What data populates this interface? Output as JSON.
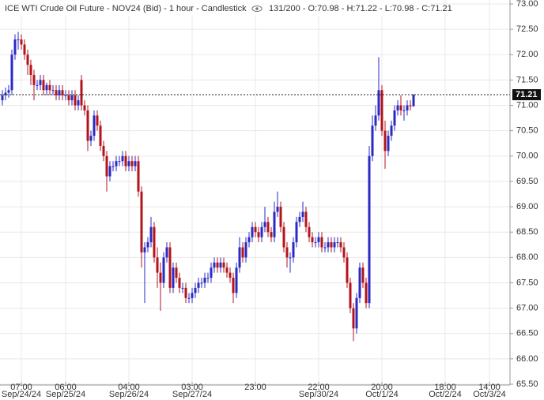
{
  "chart_data": {
    "type": "candlestick",
    "title": "ICE WTI Crude Oil Future - NOV24 (Bid) - 1 hour - Candlestick",
    "info": "131/200 - O:70.98 - H:71.22 - L:70.98 - C:71.21",
    "up_color": "#2a2ac4",
    "down_color": "#b3141c",
    "grid": true,
    "last_price": {
      "value": 71.21,
      "label": "71.21"
    },
    "xlim": [
      -0.75,
      160.5
    ],
    "xticks": [
      {
        "value": 6,
        "label": "07:00",
        "date": "Sep/24/24"
      },
      {
        "value": 20,
        "label": "06:00",
        "date": "Sep/25/24"
      },
      {
        "value": 40,
        "label": "04:00",
        "date": "Sep/26/24"
      },
      {
        "value": 60,
        "label": "03:00",
        "date": "Sep/27/24"
      },
      {
        "value": 80,
        "label": "23:00"
      },
      {
        "value": 100,
        "label": "22:00",
        "date": "Sep/30/24"
      },
      {
        "value": 120,
        "label": "20:00",
        "date": "Oct/1/24"
      },
      {
        "value": 140,
        "label": "18:00",
        "date": "Oct/2/24"
      },
      {
        "value": 154,
        "label": "14:00",
        "date": "Oct/3/24"
      }
    ],
    "ylim": [
      65.5,
      73.0
    ],
    "yticks": [
      {
        "value": 65.5,
        "label": "65.50"
      },
      {
        "value": 66,
        "label": "66.00"
      },
      {
        "value": 66.5,
        "label": "66.50"
      },
      {
        "value": 67,
        "label": "67.00"
      },
      {
        "value": 67.5,
        "label": "67.50"
      },
      {
        "value": 68,
        "label": "68.00"
      },
      {
        "value": 68.5,
        "label": "68.50"
      },
      {
        "value": 69,
        "label": "69.00"
      },
      {
        "value": 69.5,
        "label": "69.50"
      },
      {
        "value": 70,
        "label": "70.00"
      },
      {
        "value": 70.5,
        "label": "70.50"
      },
      {
        "value": 71,
        "label": "71.00"
      },
      {
        "value": 71.5,
        "label": "71.50"
      },
      {
        "value": 72,
        "label": "72.00"
      },
      {
        "value": 72.5,
        "label": "72.50"
      },
      {
        "value": 73,
        "label": "73.00"
      }
    ],
    "open": [
      71.1,
      71.2,
      71.25,
      71.3,
      72.0,
      72.3,
      72.3,
      72.2,
      72.0,
      71.8,
      71.6,
      71.4,
      71.4,
      71.5,
      71.3,
      71.4,
      71.3,
      71.3,
      71.2,
      71.3,
      71.2,
      71.2,
      71.1,
      71.2,
      71.0,
      71.5,
      71.0,
      70.9,
      70.3,
      70.4,
      70.8,
      70.6,
      70.2,
      70.0,
      69.6,
      69.8,
      69.8,
      69.9,
      69.9,
      70.0,
      69.8,
      69.9,
      69.8,
      69.9,
      69.3,
      68.1,
      68.2,
      68.3,
      68.6,
      68.0,
      67.7,
      67.5,
      68.0,
      68.2,
      67.4,
      67.8,
      67.6,
      67.4,
      67.4,
      67.2,
      67.2,
      67.3,
      67.4,
      67.5,
      67.5,
      67.6,
      67.6,
      67.8,
      67.9,
      67.8,
      67.9,
      67.8,
      67.7,
      67.6,
      67.3,
      67.8,
      68.2,
      68.0,
      68.3,
      68.4,
      68.6,
      68.5,
      68.4,
      68.6,
      68.7,
      68.5,
      68.4,
      68.9,
      69.0,
      68.6,
      68.2,
      68.0,
      68.0,
      68.3,
      68.7,
      68.8,
      68.9,
      68.6,
      68.4,
      68.3,
      68.3,
      68.4,
      68.2,
      68.2,
      68.3,
      68.2,
      68.3,
      68.3,
      68.2,
      68.0,
      67.5,
      67.0,
      66.6,
      67.2,
      67.8,
      67.5,
      67.1,
      70.0,
      70.6,
      70.8,
      71.3,
      70.5,
      70.1,
      70.4,
      70.6,
      70.9,
      71.0,
      70.9,
      70.9,
      71.0,
      70.98
    ],
    "high": [
      71.3,
      71.35,
      71.4,
      72.1,
      72.4,
      72.45,
      72.4,
      72.3,
      72.1,
      71.9,
      71.7,
      71.5,
      71.6,
      71.6,
      71.45,
      71.5,
      71.4,
      71.4,
      71.4,
      71.4,
      71.3,
      71.3,
      71.3,
      71.3,
      71.2,
      71.6,
      71.1,
      71.0,
      70.5,
      70.9,
      70.9,
      70.7,
      70.3,
      70.1,
      69.9,
      69.9,
      70.0,
      70.0,
      70.1,
      70.1,
      70.0,
      70.0,
      70.0,
      70.0,
      69.4,
      68.3,
      68.4,
      68.8,
      68.7,
      68.2,
      67.9,
      68.1,
      68.3,
      68.3,
      67.9,
      67.9,
      67.7,
      67.5,
      67.5,
      67.3,
      67.4,
      67.5,
      67.6,
      67.6,
      67.7,
      67.7,
      67.9,
      68.0,
      68.0,
      68.0,
      68.0,
      67.9,
      67.8,
      67.7,
      67.9,
      68.4,
      68.3,
      68.4,
      68.5,
      68.7,
      68.7,
      68.6,
      68.7,
      69.0,
      68.8,
      68.6,
      69.1,
      69.3,
      69.1,
      68.7,
      68.3,
      68.1,
      68.4,
      68.8,
      68.9,
      69.1,
      69.0,
      68.7,
      68.5,
      68.4,
      68.5,
      68.5,
      68.3,
      68.4,
      68.4,
      68.4,
      68.4,
      68.4,
      68.3,
      68.1,
      67.6,
      67.1,
      67.3,
      67.9,
      67.9,
      67.6,
      70.2,
      70.8,
      71.0,
      71.95,
      71.4,
      70.7,
      70.5,
      70.7,
      71.0,
      71.1,
      71.2,
      71.0,
      71.1,
      71.1,
      71.22
    ],
    "low": [
      71.0,
      71.1,
      71.15,
      71.2,
      71.9,
      72.1,
      72.1,
      71.9,
      71.6,
      71.4,
      71.1,
      71.3,
      71.3,
      71.2,
      71.2,
      71.2,
      71.2,
      71.1,
      71.1,
      71.1,
      71.1,
      71.0,
      71.0,
      70.9,
      70.9,
      70.9,
      70.8,
      70.1,
      70.2,
      70.3,
      70.5,
      70.1,
      69.9,
      69.3,
      69.5,
      69.7,
      69.7,
      69.8,
      69.8,
      69.7,
      69.7,
      69.7,
      69.7,
      69.2,
      67.8,
      67.1,
      68.1,
      68.2,
      67.9,
      67.4,
      66.95,
      67.4,
      67.9,
      67.3,
      67.3,
      67.5,
      67.3,
      67.3,
      67.1,
      67.1,
      67.1,
      67.2,
      67.3,
      67.4,
      67.4,
      67.5,
      67.5,
      67.7,
      67.7,
      67.7,
      67.7,
      67.6,
      67.5,
      67.1,
      67.2,
      67.7,
      67.9,
      67.9,
      68.2,
      68.3,
      68.4,
      68.3,
      68.3,
      68.5,
      68.4,
      68.3,
      68.3,
      68.8,
      68.5,
      68.1,
      67.8,
      67.7,
      67.9,
      68.2,
      68.6,
      68.7,
      68.5,
      68.3,
      68.2,
      68.2,
      68.2,
      68.1,
      68.1,
      68.1,
      68.1,
      68.1,
      68.2,
      68.1,
      67.9,
      67.4,
      66.9,
      66.35,
      66.5,
      67.1,
      67.4,
      67.0,
      67.0,
      69.9,
      70.5,
      70.7,
      70.4,
      69.75,
      70.0,
      70.3,
      70.5,
      70.8,
      70.8,
      70.7,
      70.8,
      70.9,
      70.98
    ],
    "close": [
      71.2,
      71.25,
      71.3,
      72.0,
      72.3,
      72.3,
      72.2,
      72.0,
      71.8,
      71.6,
      71.4,
      71.4,
      71.5,
      71.3,
      71.4,
      71.3,
      71.3,
      71.2,
      71.3,
      71.2,
      71.2,
      71.1,
      71.2,
      71.0,
      71.1,
      71.0,
      70.9,
      70.3,
      70.4,
      70.8,
      70.6,
      70.2,
      70.0,
      69.6,
      69.8,
      69.8,
      69.9,
      69.9,
      70.0,
      69.8,
      69.9,
      69.8,
      69.9,
      69.3,
      68.1,
      68.2,
      68.3,
      68.6,
      68.0,
      67.7,
      67.5,
      68.0,
      68.2,
      67.4,
      67.8,
      67.6,
      67.4,
      67.4,
      67.2,
      67.2,
      67.3,
      67.4,
      67.5,
      67.5,
      67.6,
      67.6,
      67.8,
      67.9,
      67.8,
      67.9,
      67.8,
      67.7,
      67.6,
      67.3,
      67.8,
      68.2,
      68.0,
      68.3,
      68.4,
      68.6,
      68.5,
      68.4,
      68.6,
      68.7,
      68.5,
      68.4,
      68.9,
      69.0,
      68.6,
      68.2,
      68.0,
      68.0,
      68.3,
      68.7,
      68.8,
      68.9,
      68.6,
      68.4,
      68.3,
      68.3,
      68.4,
      68.2,
      68.2,
      68.3,
      68.2,
      68.3,
      68.3,
      68.2,
      68.0,
      67.5,
      67.0,
      66.6,
      67.2,
      67.8,
      67.5,
      67.1,
      70.0,
      70.6,
      70.8,
      71.3,
      70.5,
      70.1,
      70.4,
      70.6,
      70.9,
      71.0,
      70.9,
      70.9,
      71.0,
      70.98,
      71.21
    ]
  }
}
